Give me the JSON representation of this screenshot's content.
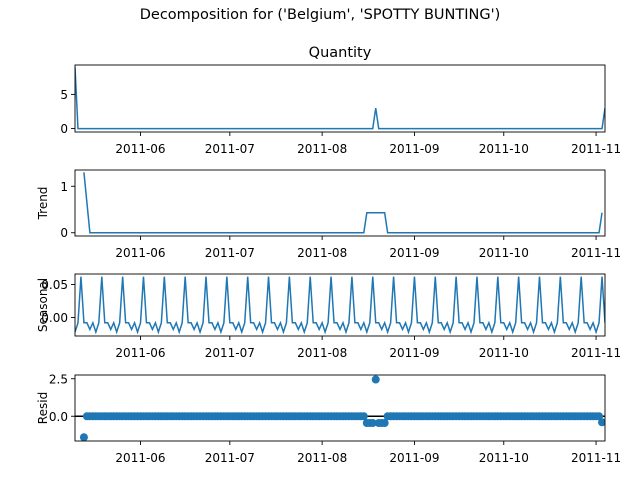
{
  "suptitle": "Decomposition for ('Belgium', 'SPOTTY BUNTING')",
  "colors": {
    "line": "#1f77b4",
    "axis": "#000000",
    "zero": "#000000"
  },
  "x_ticks": [
    "2011-06",
    "2011-07",
    "2011-08",
    "2011-09",
    "2011-10",
    "2011-11"
  ],
  "chart_data": [
    {
      "type": "line",
      "title": "Quantity",
      "ylabel": "",
      "xlim": [
        "2011-05-10",
        "2011-11-04"
      ],
      "ylim": [
        -0.5,
        9.3
      ],
      "yticks": [
        0,
        5
      ],
      "y_tick_labels": [
        "0",
        "5"
      ],
      "points": [
        {
          "x": "2011-05-10",
          "y": 9.0
        },
        {
          "x": "2011-05-11",
          "y": 0
        },
        {
          "x": "2011-08-18",
          "y": 0
        },
        {
          "x": "2011-08-19",
          "y": 3.0
        },
        {
          "x": "2011-08-20",
          "y": 0
        },
        {
          "x": "2011-11-03",
          "y": 0
        },
        {
          "x": "2011-11-04",
          "y": 3.0
        }
      ]
    },
    {
      "type": "line",
      "title": "",
      "ylabel": "Trend",
      "xlim": [
        "2011-05-10",
        "2011-11-04"
      ],
      "ylim": [
        -0.07,
        1.35
      ],
      "yticks": [
        0,
        1
      ],
      "y_tick_labels": [
        "0",
        "1"
      ],
      "points": [
        {
          "x": "2011-05-13",
          "y": 1.3
        },
        {
          "x": "2011-05-15",
          "y": 0
        },
        {
          "x": "2011-08-15",
          "y": 0
        },
        {
          "x": "2011-08-16",
          "y": 0.43
        },
        {
          "x": "2011-08-22",
          "y": 0.43
        },
        {
          "x": "2011-08-23",
          "y": 0
        },
        {
          "x": "2011-11-02",
          "y": 0
        },
        {
          "x": "2011-11-03",
          "y": 0.43
        }
      ]
    },
    {
      "type": "line",
      "title": "",
      "ylabel": "Seasonal",
      "xlim": [
        "2011-05-10",
        "2011-11-04"
      ],
      "ylim": [
        -0.028,
        0.066
      ],
      "yticks": [
        0.0,
        0.05
      ],
      "y_tick_labels": [
        "0.00",
        "0.05"
      ],
      "period_start": "2011-05-10",
      "seasonal_pattern": [
        -0.022,
        -0.008,
        0.062,
        -0.008,
        -0.008,
        -0.018,
        -0.008
      ]
    },
    {
      "type": "scatter",
      "title": "",
      "ylabel": "Resid",
      "xlim": [
        "2011-05-10",
        "2011-11-04"
      ],
      "ylim": [
        -1.65,
        2.75
      ],
      "yticks": [
        -0.0,
        2.5
      ],
      "y_tick_labels": [
        "0.0",
        "2.5"
      ],
      "zero_line": true,
      "start": "2011-05-13",
      "end": "2011-11-03",
      "default_value": 0.0,
      "special": [
        {
          "x": "2011-05-13",
          "y": -1.4
        },
        {
          "x": "2011-08-16",
          "y": -0.45
        },
        {
          "x": "2011-08-17",
          "y": -0.45
        },
        {
          "x": "2011-08-18",
          "y": -0.45
        },
        {
          "x": "2011-08-19",
          "y": 2.45
        },
        {
          "x": "2011-08-20",
          "y": -0.45
        },
        {
          "x": "2011-08-21",
          "y": -0.45
        },
        {
          "x": "2011-08-22",
          "y": -0.45
        },
        {
          "x": "2011-11-03",
          "y": -0.4
        }
      ]
    }
  ]
}
